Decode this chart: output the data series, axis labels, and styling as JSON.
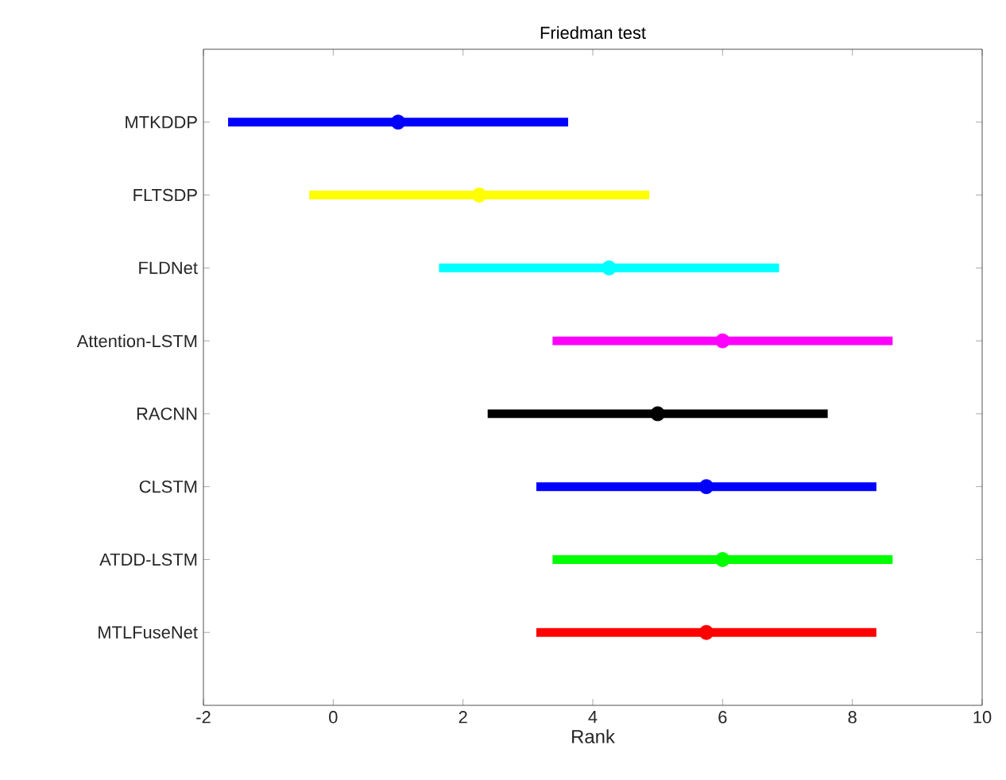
{
  "chart_data": {
    "type": "scatter",
    "orientation": "horizontal",
    "title": "Friedman test",
    "xlabel": "Rank",
    "categories": [
      "MTKDDP",
      "FLTSDP",
      "FLDNet",
      "Attention-LSTM",
      "RACNN",
      "CLSTM",
      "ATDD-LSTM",
      "MTLFuseNet"
    ],
    "values": [
      1.0,
      2.25,
      4.25,
      6.0,
      5.0,
      5.75,
      6.0,
      5.75
    ],
    "errors": [
      2.62,
      2.62,
      2.62,
      2.62,
      2.62,
      2.62,
      2.62,
      2.62
    ],
    "colors": [
      "#0000ff",
      "#ffff00",
      "#00ffff",
      "#ff00ff",
      "#000000",
      "#0000ff",
      "#00ff00",
      "#ff0000"
    ],
    "marker": "circle",
    "xlim": [
      -2,
      10
    ],
    "xticks": [
      -2,
      0,
      2,
      4,
      6,
      8,
      10
    ]
  }
}
